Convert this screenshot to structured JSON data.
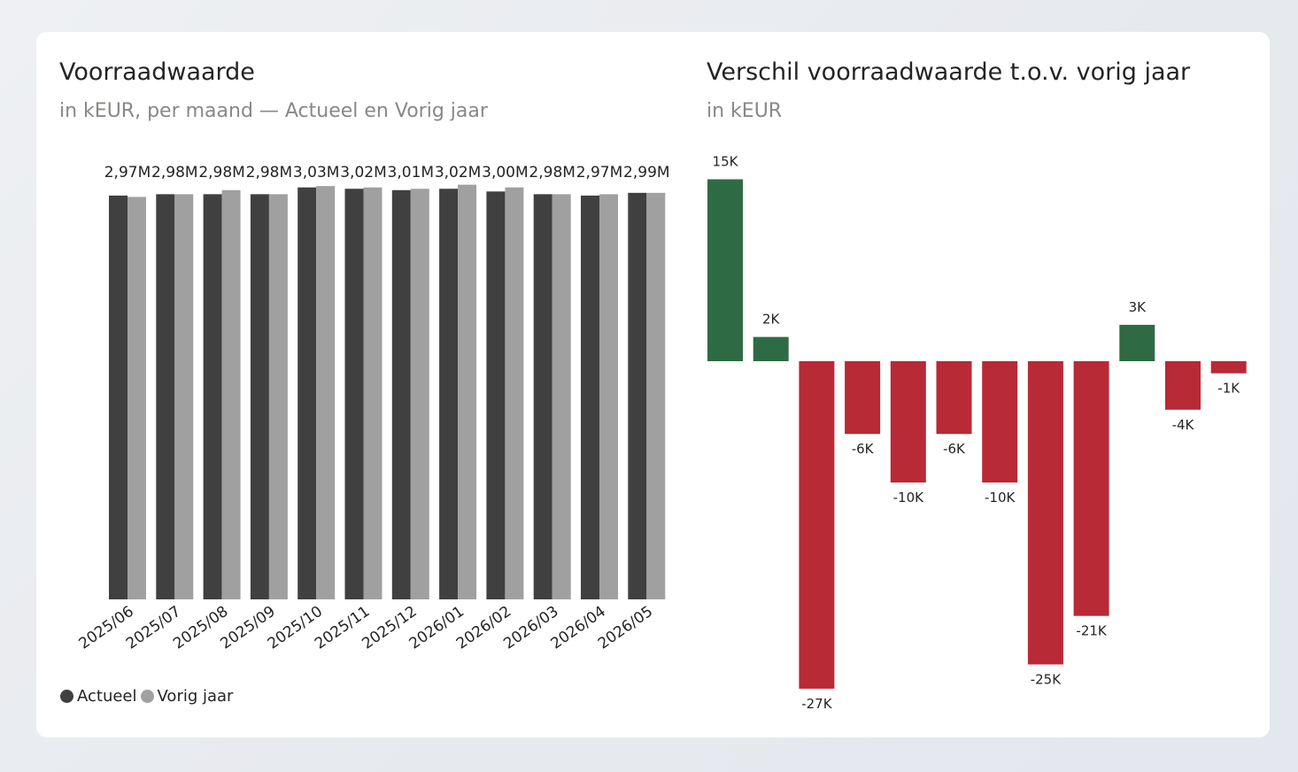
{
  "left": {
    "title": "Voorraadwaarde",
    "subtitle": "in kEUR, per maand — Actueel en Vorig jaar"
  },
  "right": {
    "title": "Verschil voorraadwaarde t.o.v. vorig jaar",
    "subtitle": "in kEUR"
  },
  "legend": {
    "actual_label": "Actueel",
    "prior_label": "Vorig jaar",
    "actual_color": "#404040",
    "prior_color": "#a0a0a0"
  },
  "chart_data": [
    {
      "type": "bar",
      "categories": [
        "2025/06",
        "2025/07",
        "2025/08",
        "2025/09",
        "2025/10",
        "2025/11",
        "2025/12",
        "2026/01",
        "2026/02",
        "2026/03",
        "2026/04",
        "2026/05"
      ],
      "series": [
        {
          "name": "Actueel",
          "color": "#404040",
          "values": [
            2.97,
            2.98,
            2.98,
            2.98,
            3.03,
            3.02,
            3.01,
            3.02,
            3.0,
            2.98,
            2.97,
            2.99
          ]
        },
        {
          "name": "Vorig jaar",
          "color": "#a0a0a0",
          "values": [
            2.96,
            2.98,
            3.01,
            2.98,
            3.04,
            3.03,
            3.02,
            3.05,
            3.03,
            2.98,
            2.98,
            2.99
          ]
        }
      ],
      "data_labels": [
        "2,97M",
        "2,98M",
        "2,98M",
        "2,98M",
        "3,03M",
        "3,02M",
        "3,01M",
        "3,02M",
        "3,00M",
        "2,98M",
        "2,97M",
        "2,99M"
      ],
      "unit": "M",
      "ylim": [
        0,
        3.08
      ],
      "grid": false,
      "legend_position": "bottom-left"
    },
    {
      "type": "bar",
      "categories": [
        "2025/06",
        "2025/07",
        "2025/08",
        "2025/09",
        "2025/10",
        "2025/11",
        "2025/12",
        "2026/01",
        "2026/02",
        "2026/03",
        "2026/04",
        "2026/05"
      ],
      "values": [
        15,
        2,
        -27,
        -6,
        -10,
        -6,
        -10,
        -25,
        -21,
        3,
        -4,
        -1
      ],
      "data_labels": [
        "15K",
        "2K",
        "-27K",
        "-6K",
        "-10K",
        "-6K",
        "-10K",
        "-25K",
        "-21K",
        "3K",
        "-4K",
        "-1K"
      ],
      "positive_color": "#2e6b44",
      "negative_color": "#b82a35",
      "category_axis_visible": false,
      "grid": false
    }
  ]
}
